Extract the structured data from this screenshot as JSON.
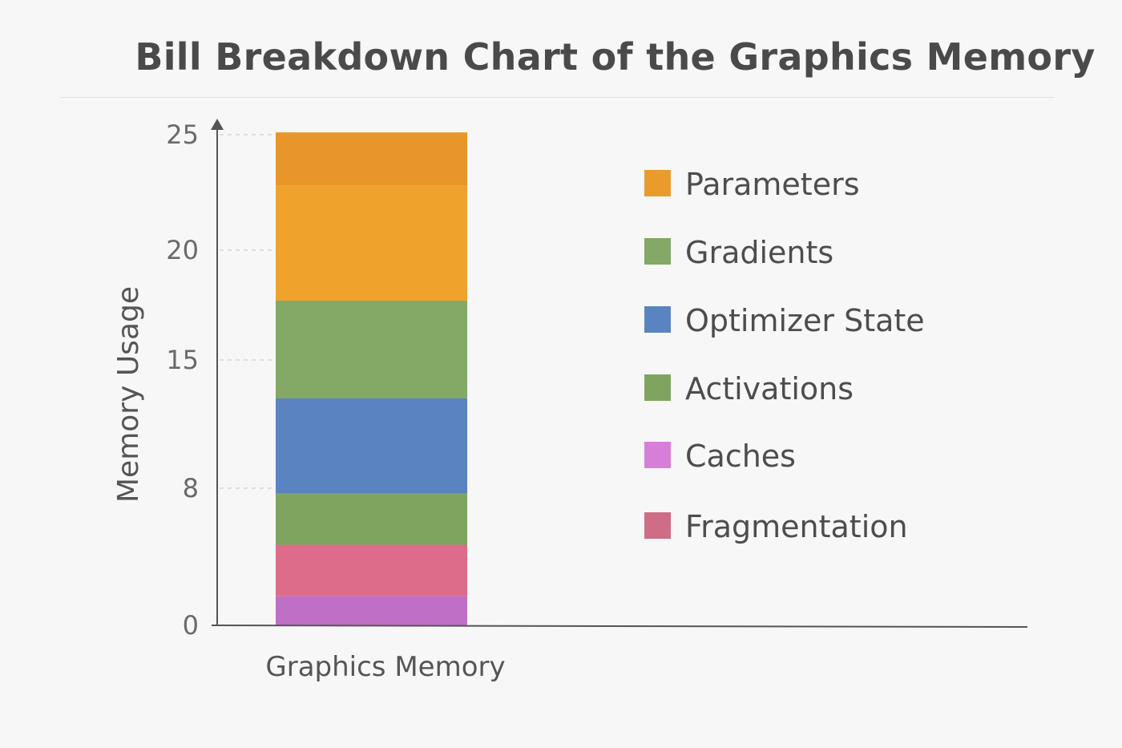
{
  "chart_data": {
    "type": "bar",
    "stacked": true,
    "title": "Bill Breakdown Chart of the Graphics Memory",
    "xlabel": "",
    "ylabel": "Memory Usage",
    "categories": [
      "Graphics Memory"
    ],
    "y_ticks": [
      0,
      8,
      15,
      20,
      25
    ],
    "ylim": [
      0,
      25
    ],
    "grid": "dashed horizontal at ticks",
    "legend_position": "right",
    "series": [
      {
        "name": "Caches",
        "values": [
          1.7
        ],
        "color": "#bf6fc6"
      },
      {
        "name": "Fragmentation",
        "values": [
          3
        ],
        "color": "#dd6b8a"
      },
      {
        "name": "Activations",
        "values": [
          3
        ],
        "color": "#7fa460"
      },
      {
        "name": "Optimizer State",
        "values": [
          5.2
        ],
        "color": "#5a83c2"
      },
      {
        "name": "Gradients",
        "values": [
          4.8
        ],
        "color": "#84a866"
      },
      {
        "name": "Parameters",
        "values": [
          5.1
        ],
        "color": "#efa22c"
      },
      {
        "name": "",
        "values": [
          2.3
        ],
        "color": "#e8962a"
      }
    ],
    "legend": [
      {
        "label": "Parameters",
        "color": "#e99b2c"
      },
      {
        "label": "Gradients",
        "color": "#84a866"
      },
      {
        "label": "Optimizer State",
        "color": "#5a83c2"
      },
      {
        "label": "Activations",
        "color": "#7fa460"
      },
      {
        "label": "Caches",
        "color": "#d77ed8"
      },
      {
        "label": "Fragmentation",
        "color": "#cf6c86"
      }
    ]
  }
}
